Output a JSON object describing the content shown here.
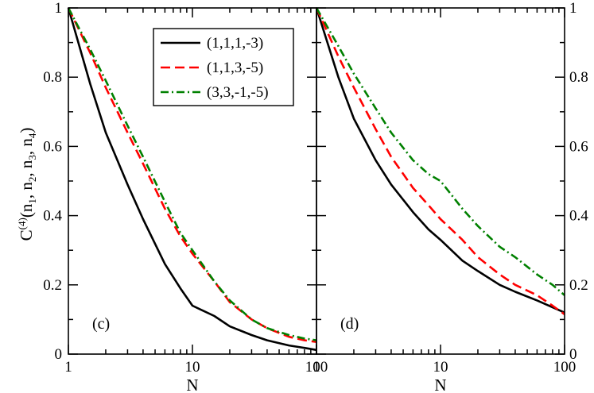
{
  "chart_data": [
    {
      "type": "line",
      "panel_label": "(c)",
      "xscale": "log",
      "xlim": [
        1,
        100
      ],
      "ylim": [
        0,
        1
      ],
      "xticks": [
        "1",
        "10",
        "100"
      ],
      "yticks": [
        "0",
        "0.2",
        "0.4",
        "0.6",
        "0.8",
        "1"
      ],
      "xlabel": "N",
      "ylabel": "C(4)(n1, n2, n3, n4)",
      "legend_position": "top-right",
      "series": [
        {
          "name": "(1,1,1,-3)",
          "color": "#000000",
          "dash": "solid",
          "x": [
            1,
            1.5,
            2,
            3,
            4,
            6,
            8,
            10,
            15,
            20,
            30,
            40,
            60,
            80,
            100
          ],
          "y": [
            1.0,
            0.78,
            0.64,
            0.49,
            0.39,
            0.26,
            0.19,
            0.14,
            0.11,
            0.08,
            0.055,
            0.04,
            0.025,
            0.018,
            0.012
          ]
        },
        {
          "name": "(1,1,3,-5)",
          "color": "#ff0000",
          "dash": "dashed",
          "x": [
            1,
            1.5,
            2,
            3,
            4,
            6,
            8,
            10,
            15,
            20,
            30,
            40,
            60,
            80,
            100
          ],
          "y": [
            1.0,
            0.87,
            0.77,
            0.64,
            0.55,
            0.42,
            0.34,
            0.29,
            0.21,
            0.15,
            0.1,
            0.075,
            0.05,
            0.04,
            0.035
          ]
        },
        {
          "name": "(3,3,-1,-5)",
          "color": "#008000",
          "dash": "dashdot",
          "x": [
            1,
            1.5,
            2,
            3,
            4,
            6,
            8,
            10,
            15,
            20,
            30,
            40,
            60,
            80,
            100
          ],
          "y": [
            1.0,
            0.88,
            0.79,
            0.66,
            0.57,
            0.44,
            0.35,
            0.3,
            0.21,
            0.155,
            0.1,
            0.075,
            0.055,
            0.045,
            0.04
          ]
        }
      ]
    },
    {
      "type": "line",
      "panel_label": "(d)",
      "xscale": "log",
      "xlim": [
        1,
        100
      ],
      "ylim": [
        0,
        1
      ],
      "xticks": [
        "1",
        "10",
        "100"
      ],
      "yticks": [
        "0",
        "0.2",
        "0.4",
        "0.6",
        "0.8",
        "1"
      ],
      "xlabel": "N",
      "series": [
        {
          "name": "(1,1,1,-3)",
          "color": "#000000",
          "dash": "solid",
          "x": [
            1,
            1.5,
            2,
            3,
            4,
            6,
            8,
            10,
            15,
            20,
            30,
            40,
            60,
            80,
            100
          ],
          "y": [
            1.0,
            0.8,
            0.68,
            0.56,
            0.49,
            0.41,
            0.36,
            0.33,
            0.27,
            0.24,
            0.2,
            0.18,
            0.155,
            0.135,
            0.12
          ]
        },
        {
          "name": "(1,1,3,-5)",
          "color": "#ff0000",
          "dash": "dashed",
          "x": [
            1,
            1.5,
            2,
            3,
            4,
            6,
            8,
            10,
            15,
            20,
            30,
            40,
            60,
            80,
            100
          ],
          "y": [
            1.0,
            0.86,
            0.77,
            0.65,
            0.57,
            0.48,
            0.43,
            0.39,
            0.33,
            0.28,
            0.23,
            0.2,
            0.17,
            0.14,
            0.115
          ]
        },
        {
          "name": "(3,3,-1,-5)",
          "color": "#008000",
          "dash": "dashdot",
          "x": [
            1,
            1.5,
            2,
            3,
            4,
            6,
            8,
            10,
            15,
            20,
            30,
            40,
            60,
            80,
            100
          ],
          "y": [
            1.0,
            0.89,
            0.81,
            0.71,
            0.64,
            0.56,
            0.52,
            0.5,
            0.42,
            0.37,
            0.31,
            0.28,
            0.23,
            0.2,
            0.17
          ]
        }
      ]
    }
  ]
}
